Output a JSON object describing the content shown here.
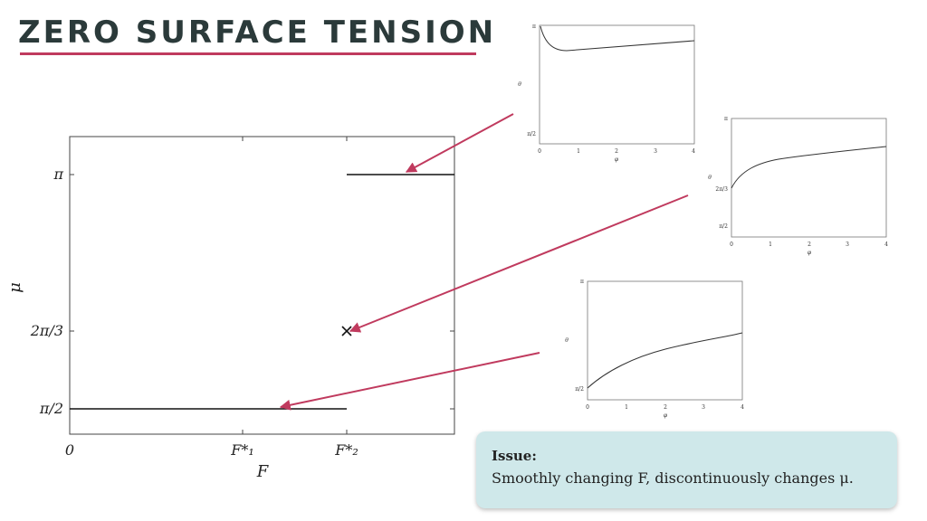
{
  "title": "ZERO SURFACE TENSION",
  "main_plot": {
    "ylabel": "μ",
    "xlabel": "F",
    "y_ticks": [
      "π",
      "2π/3",
      "π/2"
    ],
    "x_ticks": [
      "0",
      "F*₁",
      "F*₂"
    ]
  },
  "chart_data": {
    "type": "line",
    "segments": [
      {
        "mu": "π/2",
        "from_F": "0",
        "to_F": "F*₂"
      },
      {
        "mu": "π",
        "from_F": "F*₂",
        "to_F": "end"
      }
    ],
    "marker": {
      "symbol": "×",
      "F": "F*₂",
      "mu": "2π/3"
    }
  },
  "insets": [
    {
      "ylabel": "θ",
      "xlabel": "φ",
      "y_ticks": [
        "π",
        "π/2"
      ],
      "x_ticks": [
        "0",
        "1",
        "2",
        "3",
        "4"
      ]
    },
    {
      "ylabel": "θ",
      "xlabel": "φ",
      "y_ticks": [
        "π",
        "2π/3",
        "π/2"
      ],
      "x_ticks": [
        "0",
        "1",
        "2",
        "3",
        "4"
      ]
    },
    {
      "ylabel": "θ",
      "xlabel": "φ",
      "y_ticks": [
        "π",
        "π/2"
      ],
      "x_ticks": [
        "0",
        "1",
        "2",
        "3",
        "4"
      ]
    }
  ],
  "issue": {
    "heading": "Issue:",
    "text": "Smoothly changing F, discontinuously changes μ."
  },
  "colors": {
    "accent": "#c03a5e",
    "title": "#2b3a3a",
    "box": "#cfe8ea"
  }
}
